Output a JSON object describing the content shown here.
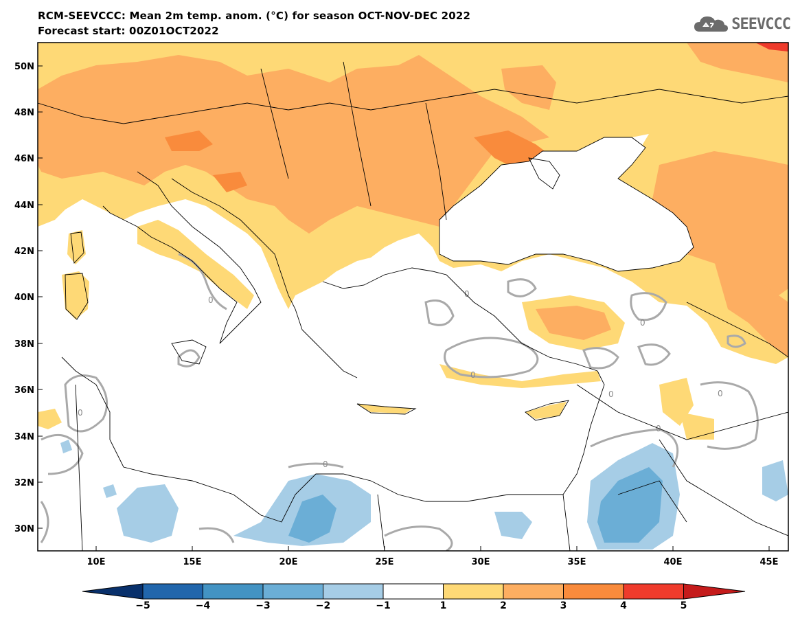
{
  "header": {
    "line1": "RCM-SEEVCCC: Mean 2m temp. anom. (°C) for season OCT-NOV-DEC 2022",
    "line2": "Forecast start: 00Z01OCT2022"
  },
  "logo": {
    "text": "SEEVCCC",
    "icon": "cloud-icon"
  },
  "map": {
    "lat_labels": [
      "50N",
      "48N",
      "46N",
      "44N",
      "42N",
      "40N",
      "38N",
      "36N",
      "34N",
      "32N",
      "30N"
    ],
    "lon_labels": [
      "10E",
      "15E",
      "20E",
      "25E",
      "30E",
      "35E",
      "40E",
      "45E"
    ],
    "contour_label": "0",
    "region": "Eastern Mediterranean / Black Sea"
  },
  "colorbar": {
    "labels": [
      "−5",
      "−4",
      "−3",
      "−2",
      "−1",
      "1",
      "2",
      "3",
      "4",
      "5"
    ],
    "colors": [
      "#08306b",
      "#2166ac",
      "#4393c3",
      "#6baed6",
      "#a6cde6",
      "#ffffff",
      "#fed976",
      "#fdae61",
      "#f98b3c",
      "#ef3b2c",
      "#c51b1b"
    ]
  },
  "colors": {
    "land_warm1": "#fed976",
    "land_warm2": "#fdae61",
    "land_warm3": "#f98b3c",
    "land_warm4": "#ef3b2c",
    "cool1": "#a6cde6",
    "cool2": "#6baed6",
    "contour": "#a9a9a9",
    "border": "#000000"
  }
}
